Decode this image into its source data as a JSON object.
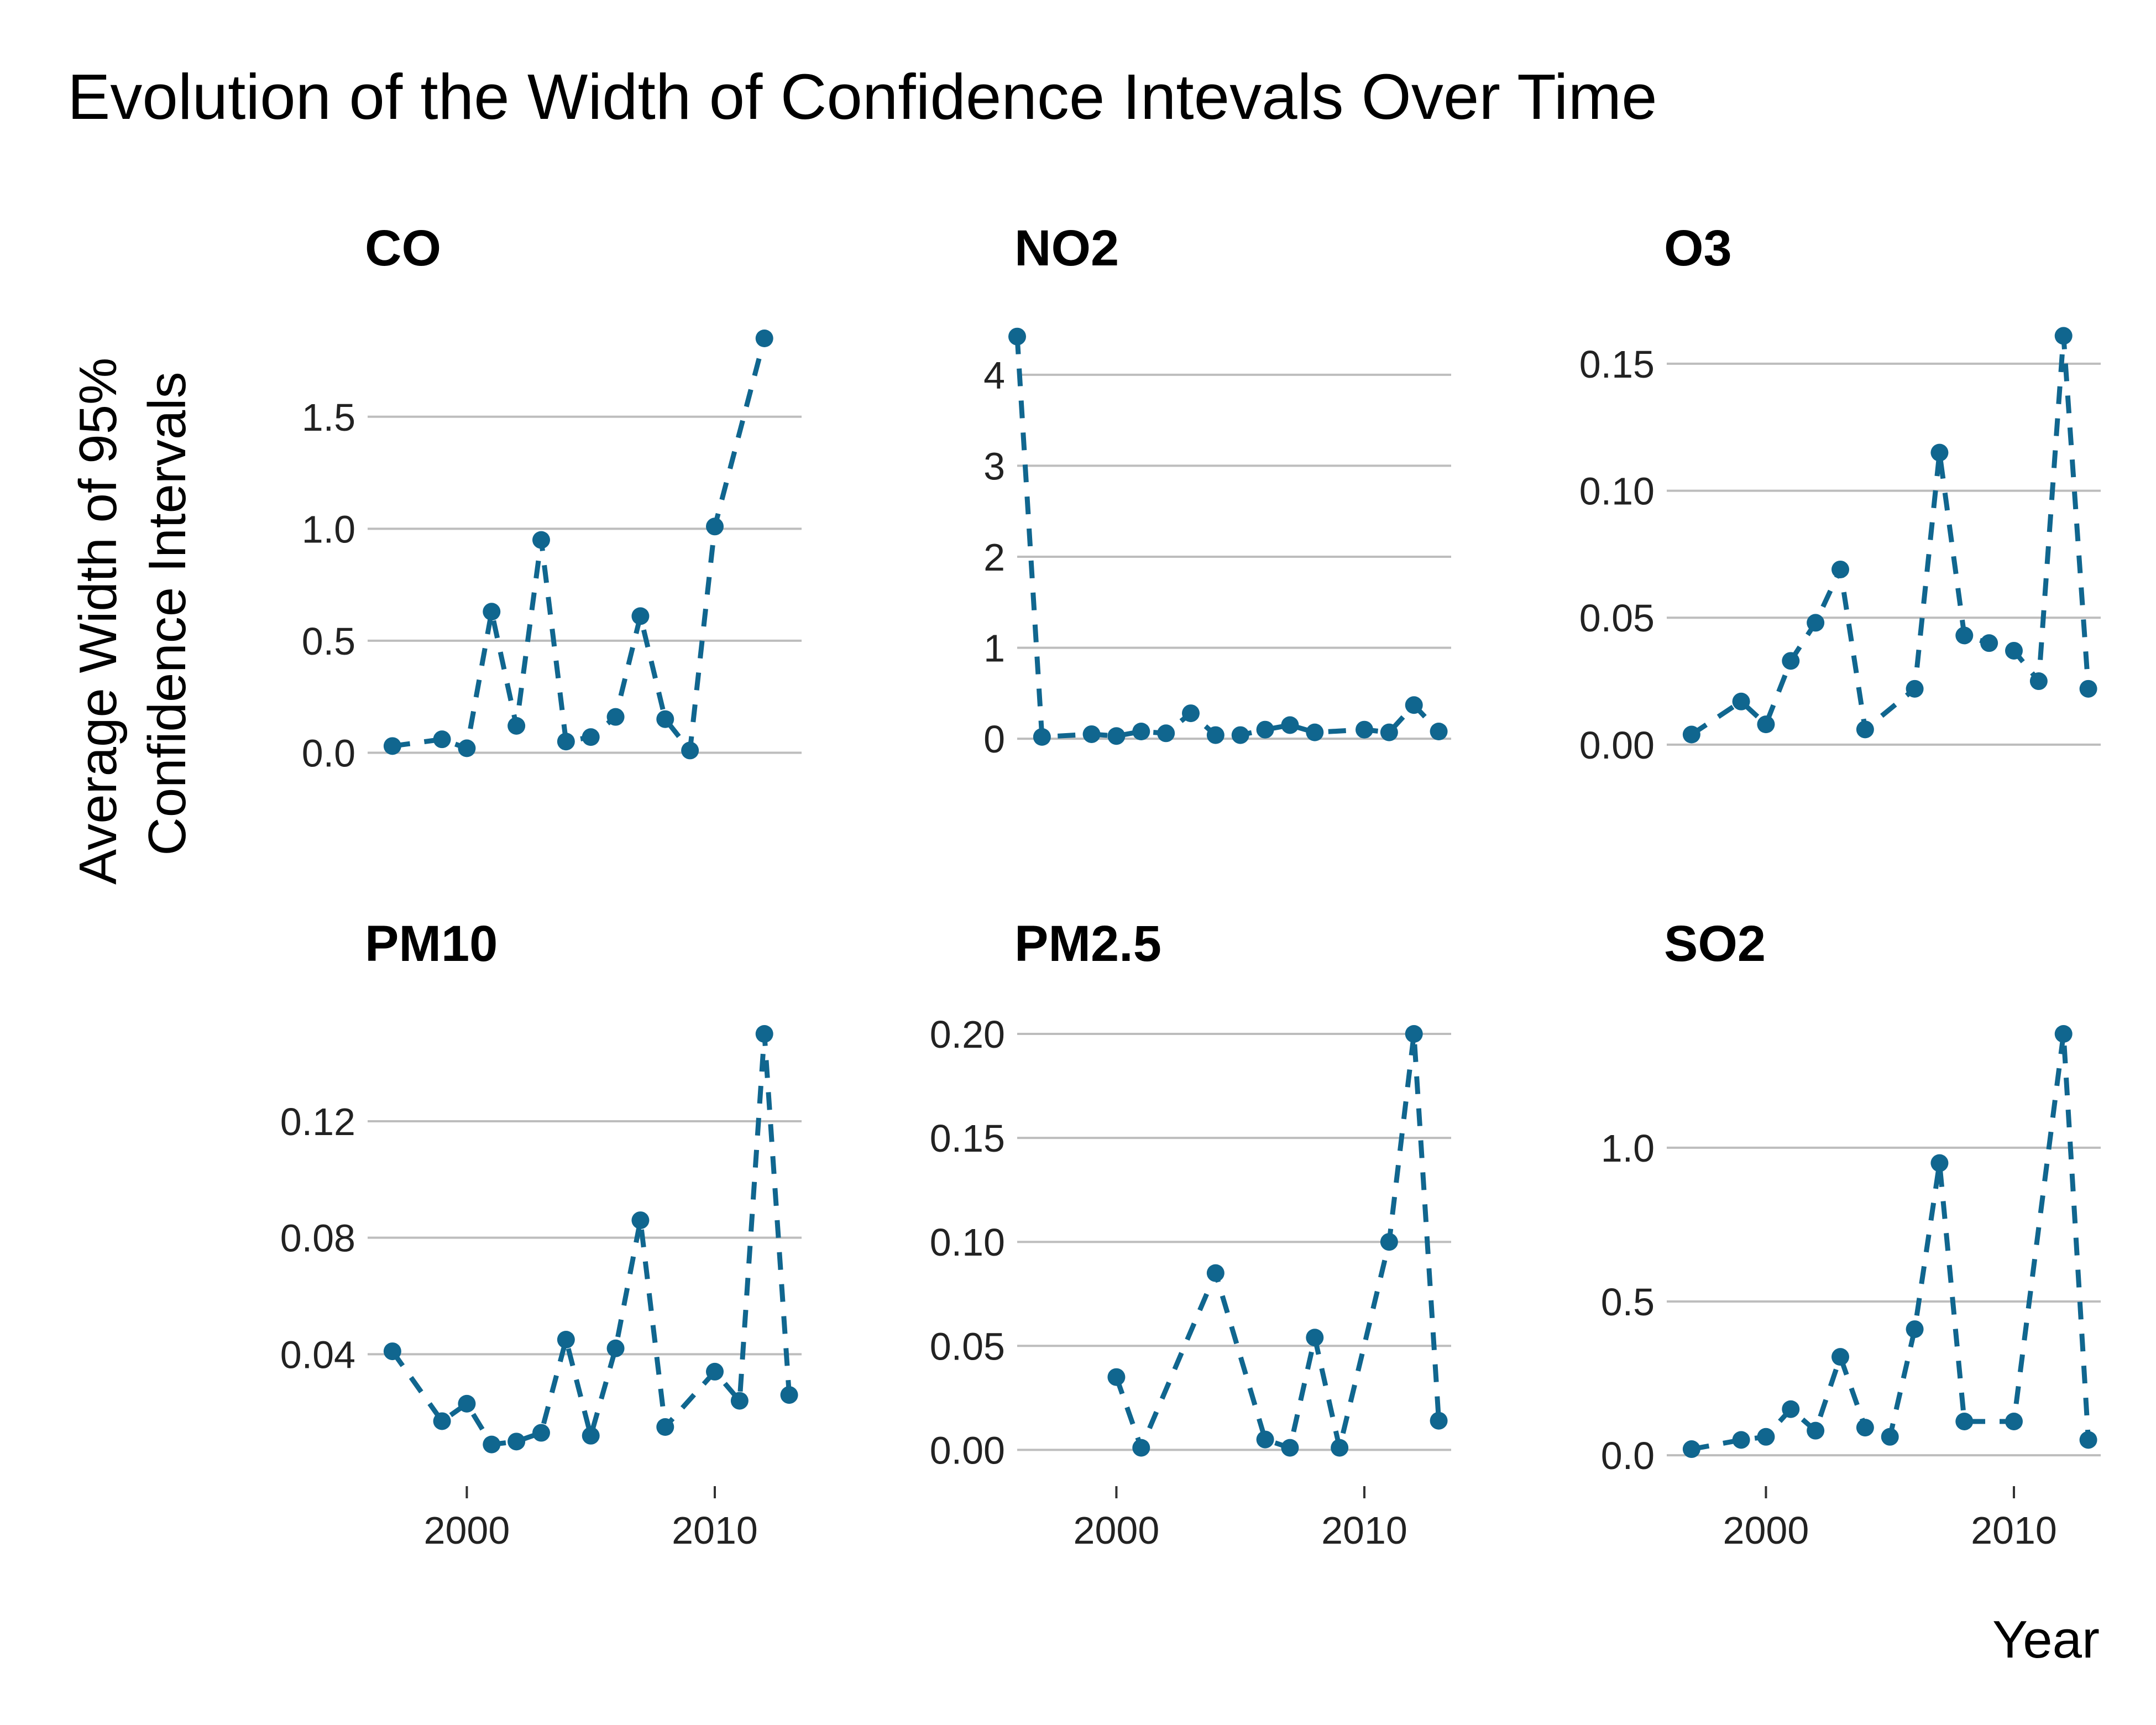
{
  "chart_data": {
    "type": "line",
    "title": "Evolution of the Width of Confidence Intevals Over Time",
    "xlabel": "Year",
    "ylabel": [
      "Average Width of 95%",
      "Confidence Intervals"
    ],
    "color": "#10668f",
    "line_style": "dashed",
    "markers": true,
    "grid": "horizontal",
    "layout": "2x3 facets",
    "x_ticks": [
      2000,
      2010
    ],
    "xlim": [
      1996,
      2013.5
    ],
    "panels": [
      {
        "name": "CO",
        "ylim": [
          -0.1,
          1.85
        ],
        "y_ticks": [
          "0.0",
          "0.5",
          "1.0",
          "1.5"
        ],
        "y_tick_values": [
          0.0,
          0.5,
          1.0,
          1.5
        ],
        "x_tick_labels": false,
        "points": [
          [
            1997,
            0.03
          ],
          [
            1999,
            0.06
          ],
          [
            2000,
            0.02
          ],
          [
            2001,
            0.63
          ],
          [
            2002,
            0.12
          ],
          [
            2003,
            0.95
          ],
          [
            2004,
            0.05
          ],
          [
            2005,
            0.07
          ],
          [
            2006,
            0.16
          ],
          [
            2007,
            0.61
          ],
          [
            2008,
            0.15
          ],
          [
            2009,
            0.01
          ],
          [
            2010,
            1.01
          ],
          [
            2012,
            1.85
          ]
        ]
      },
      {
        "name": "NO2",
        "ylim": [
          -0.4,
          4.4
        ],
        "y_ticks": [
          "0",
          "1",
          "2",
          "3",
          "4"
        ],
        "y_tick_values": [
          0,
          1,
          2,
          3,
          4
        ],
        "x_tick_labels": false,
        "points": [
          [
            1996,
            4.42
          ],
          [
            1997,
            0.02
          ],
          [
            1999,
            0.05
          ],
          [
            2000,
            0.03
          ],
          [
            2001,
            0.08
          ],
          [
            2002,
            0.06
          ],
          [
            2003,
            0.28
          ],
          [
            2004,
            0.04
          ],
          [
            2005,
            0.04
          ],
          [
            2006,
            0.1
          ],
          [
            2007,
            0.15
          ],
          [
            2008,
            0.07
          ],
          [
            2010,
            0.1
          ],
          [
            2011,
            0.07
          ],
          [
            2012,
            0.37
          ],
          [
            2013,
            0.08
          ]
        ]
      },
      {
        "name": "O3",
        "ylim": [
          -0.012,
          0.16
        ],
        "y_ticks": [
          "0.00",
          "0.05",
          "0.10",
          "0.15"
        ],
        "y_tick_values": [
          0.0,
          0.05,
          0.1,
          0.15
        ],
        "x_tick_labels": false,
        "points": [
          [
            1997,
            0.004
          ],
          [
            1999,
            0.017
          ],
          [
            2000,
            0.008
          ],
          [
            2001,
            0.033
          ],
          [
            2002,
            0.048
          ],
          [
            2003,
            0.069
          ],
          [
            2004,
            0.006
          ],
          [
            2006,
            0.022
          ],
          [
            2007,
            0.115
          ],
          [
            2008,
            0.043
          ],
          [
            2009,
            0.04
          ],
          [
            2010,
            0.037
          ],
          [
            2011,
            0.025
          ],
          [
            2012,
            0.161
          ],
          [
            2013,
            0.022
          ]
        ]
      },
      {
        "name": "PM10",
        "ylim": [
          0.0,
          0.15
        ],
        "y_ticks": [
          "0.04",
          "0.08",
          "0.12"
        ],
        "y_tick_values": [
          0.04,
          0.08,
          0.12
        ],
        "x_tick_labels": true,
        "points": [
          [
            1997,
            0.041
          ],
          [
            1999,
            0.017
          ],
          [
            2000,
            0.023
          ],
          [
            2001,
            0.009
          ],
          [
            2002,
            0.01
          ],
          [
            2003,
            0.013
          ],
          [
            2004,
            0.045
          ],
          [
            2005,
            0.012
          ],
          [
            2006,
            0.042
          ],
          [
            2007,
            0.086
          ],
          [
            2008,
            0.015
          ],
          [
            2010,
            0.034
          ],
          [
            2011,
            0.024
          ],
          [
            2012,
            0.15
          ],
          [
            2013,
            0.026
          ]
        ]
      },
      {
        "name": "PM2.5",
        "ylim": [
          -0.01,
          0.2
        ],
        "y_ticks": [
          "0.00",
          "0.05",
          "0.10",
          "0.15",
          "0.20"
        ],
        "y_tick_values": [
          0.0,
          0.05,
          0.1,
          0.15,
          0.2
        ],
        "x_tick_labels": true,
        "points": [
          [
            2000,
            0.035
          ],
          [
            2001,
            0.001
          ],
          [
            2004,
            0.085
          ],
          [
            2006,
            0.005
          ],
          [
            2007,
            0.001
          ],
          [
            2008,
            0.054
          ],
          [
            2009,
            0.001
          ],
          [
            2011,
            0.1
          ],
          [
            2012,
            0.2
          ],
          [
            2013,
            0.014
          ]
        ]
      },
      {
        "name": "SO2",
        "ylim": [
          -0.05,
          1.37
        ],
        "y_ticks": [
          "0.0",
          "0.5",
          "1.0"
        ],
        "y_tick_values": [
          0.0,
          0.5,
          1.0
        ],
        "x_tick_labels": true,
        "points": [
          [
            1997,
            0.02
          ],
          [
            1999,
            0.05
          ],
          [
            2000,
            0.06
          ],
          [
            2001,
            0.15
          ],
          [
            2002,
            0.08
          ],
          [
            2003,
            0.32
          ],
          [
            2004,
            0.09
          ],
          [
            2005,
            0.06
          ],
          [
            2006,
            0.41
          ],
          [
            2007,
            0.95
          ],
          [
            2008,
            0.11
          ],
          [
            2010,
            0.11
          ],
          [
            2012,
            1.37
          ],
          [
            2013,
            0.05
          ]
        ]
      }
    ]
  }
}
